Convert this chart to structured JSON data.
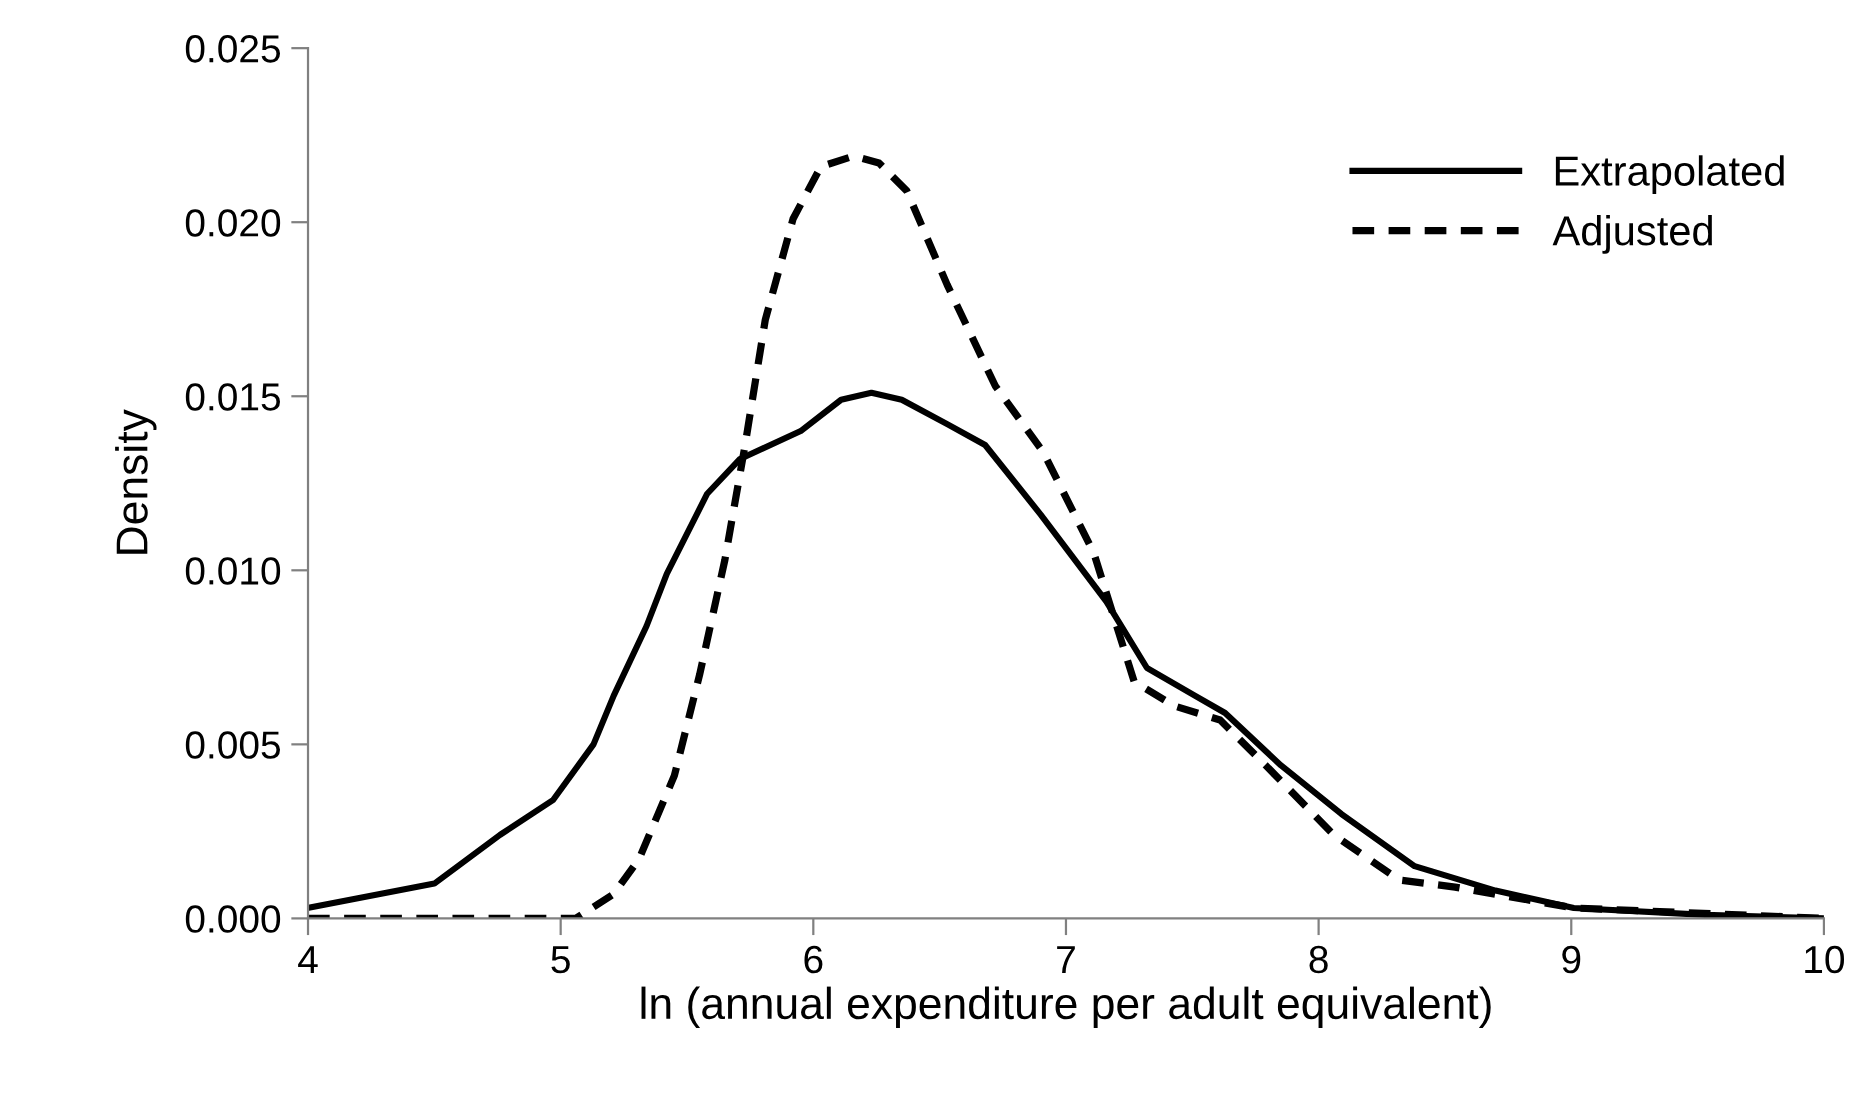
{
  "chart_data": {
    "type": "line",
    "xlabel": "ln (annual expenditure per adult equivalent)",
    "ylabel": "Density",
    "xlim": [
      4,
      10
    ],
    "xticks": [
      4,
      5,
      6,
      7,
      8,
      9,
      10
    ],
    "ylim": [
      0,
      0.025
    ],
    "yticks": [
      {
        "value": 0,
        "label": "0.000"
      },
      {
        "value": 0.005,
        "label": "0.005"
      },
      {
        "value": 0.01,
        "label": "0.010"
      },
      {
        "value": 0.015,
        "label": "0.015"
      },
      {
        "value": 0.02,
        "label": "0.020"
      },
      {
        "value": 0.025,
        "label": "0.025"
      }
    ],
    "grid": false,
    "legend": "top right",
    "marker": "none",
    "series": [
      {
        "name": "Extrapolated",
        "color": "#000000",
        "line_style": "solid",
        "x": [
          4.0,
          4.5,
          4.76,
          4.97,
          5.13,
          5.21,
          5.34,
          5.42,
          5.58,
          5.71,
          5.95,
          6.11,
          6.23,
          6.35,
          6.53,
          6.68,
          6.9,
          7.16,
          7.32,
          7.51,
          7.63,
          7.85,
          8.09,
          8.38,
          8.7,
          9.01,
          9.53,
          10.0
        ],
        "values": [
          0.0003,
          0.001,
          0.0024,
          0.0034,
          0.005,
          0.0064,
          0.0084,
          0.0099,
          0.0122,
          0.0132,
          0.014,
          0.0149,
          0.0151,
          0.0149,
          0.0142,
          0.0136,
          0.0116,
          0.0091,
          0.0072,
          0.0064,
          0.0059,
          0.0044,
          0.003,
          0.0015,
          0.0008,
          0.0003,
          0.0001,
          0.0
        ]
      },
      {
        "name": "Adjusted",
        "color": "#000000",
        "line_style": "dashed",
        "x": [
          4.0,
          5.06,
          5.21,
          5.31,
          5.45,
          5.55,
          5.65,
          5.73,
          5.81,
          5.92,
          6.03,
          6.16,
          6.26,
          6.37,
          6.53,
          6.72,
          6.91,
          7.11,
          7.27,
          7.43,
          7.61,
          7.79,
          8.06,
          8.32,
          8.54,
          9.01,
          10.0
        ],
        "values": [
          0.0,
          0.0,
          0.0007,
          0.0017,
          0.0041,
          0.007,
          0.0103,
          0.0136,
          0.0172,
          0.0201,
          0.0216,
          0.0219,
          0.0217,
          0.0209,
          0.0182,
          0.0153,
          0.0134,
          0.0105,
          0.0068,
          0.0061,
          0.0057,
          0.0044,
          0.0024,
          0.0011,
          0.0009,
          0.0003,
          0.0
        ]
      }
    ]
  }
}
